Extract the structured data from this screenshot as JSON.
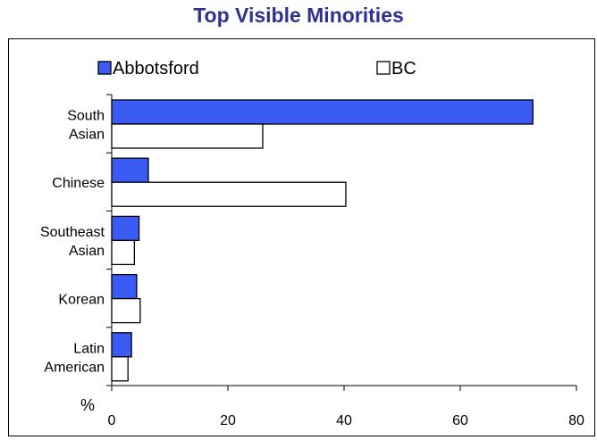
{
  "chart_data": {
    "type": "bar",
    "orientation": "horizontal",
    "title": "Top Visible Minorities",
    "xlabel": "%",
    "xlim": [
      0,
      80
    ],
    "xticks": [
      0,
      20,
      40,
      60,
      80
    ],
    "categories": [
      [
        "South",
        "Asian"
      ],
      [
        "Chinese"
      ],
      [
        "Southeast",
        "Asian"
      ],
      [
        "Korean"
      ],
      [
        "Latin",
        "American"
      ]
    ],
    "series": [
      {
        "name": "Abbotsford",
        "color": "#3b5bf5",
        "values": [
          72.5,
          6.3,
          4.7,
          4.3,
          3.4
        ]
      },
      {
        "name": "BC",
        "color": "#ffffff",
        "values": [
          26.0,
          40.3,
          3.9,
          4.9,
          2.8
        ]
      }
    ],
    "legend": "top",
    "grid": false
  }
}
